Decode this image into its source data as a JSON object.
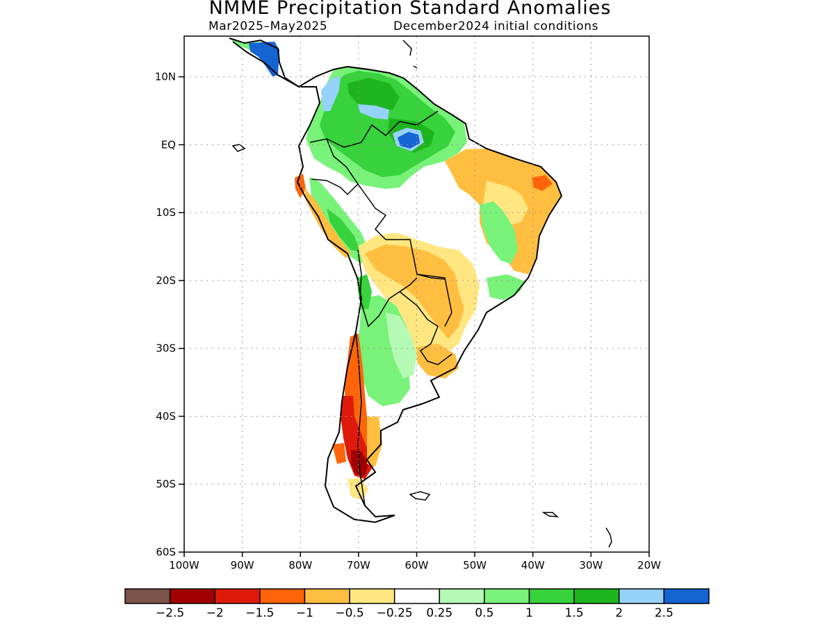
{
  "title": "NMME Precipitation Standard Anomalies",
  "subtitle_left": "Mar2025–May2025",
  "subtitle_right": "December2024 initial conditions",
  "map": {
    "lon_range": [
      -100,
      -20
    ],
    "lat_range": [
      -60,
      16
    ],
    "lat_ticks": [
      {
        "value": 10,
        "label": "10N"
      },
      {
        "value": 0,
        "label": "EQ"
      },
      {
        "value": -10,
        "label": "10S"
      },
      {
        "value": -20,
        "label": "20S"
      },
      {
        "value": -30,
        "label": "30S"
      },
      {
        "value": -40,
        "label": "40S"
      },
      {
        "value": -50,
        "label": "50S"
      },
      {
        "value": -60,
        "label": "60S"
      }
    ],
    "lon_ticks": [
      {
        "value": -100,
        "label": "100W"
      },
      {
        "value": -90,
        "label": "90W"
      },
      {
        "value": -80,
        "label": "80W"
      },
      {
        "value": -70,
        "label": "70W"
      },
      {
        "value": -60,
        "label": "60W"
      },
      {
        "value": -50,
        "label": "50W"
      },
      {
        "value": -40,
        "label": "40W"
      },
      {
        "value": -30,
        "label": "30W"
      },
      {
        "value": -20,
        "label": "20W"
      }
    ],
    "grid": "dotted"
  },
  "colorbar": {
    "colors": [
      "#7b5347",
      "#a00000",
      "#e01a0a",
      "#ff6408",
      "#ffbe40",
      "#ffe680",
      "#ffffff",
      "#b4fab4",
      "#78f278",
      "#37d23c",
      "#1eb41e",
      "#96d2fa",
      "#1464d2"
    ],
    "labels": [
      "−2.5",
      "−2",
      "−1.5",
      "−1",
      "−0.5",
      "−0.25",
      "0.25",
      "0.5",
      "1",
      "1.5",
      "2",
      "2.5"
    ]
  }
}
